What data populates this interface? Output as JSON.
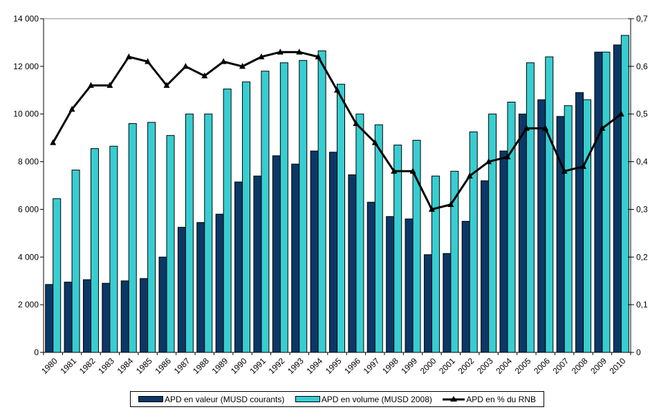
{
  "chart_data": {
    "type": "combo",
    "title": "",
    "categories": [
      "1980",
      "1981",
      "1982",
      "1983",
      "1984",
      "1985",
      "1986",
      "1987",
      "1988",
      "1989",
      "1990",
      "1991",
      "1992",
      "1993",
      "1994",
      "1995",
      "1996",
      "1997",
      "1998",
      "1999",
      "2000",
      "2001",
      "2002",
      "2003",
      "2004",
      "2005",
      "2006",
      "2007",
      "2008",
      "2009",
      "2010"
    ],
    "series": [
      {
        "name": "APD en valeur (MUSD courants)",
        "type": "bar",
        "axis": "left",
        "color": "#0B3866",
        "values": [
          2850,
          2950,
          3050,
          2900,
          3000,
          3100,
          4000,
          5250,
          5450,
          5800,
          7150,
          7400,
          8250,
          7900,
          8450,
          8400,
          7450,
          6300,
          5700,
          5600,
          4100,
          4150,
          5500,
          7200,
          8450,
          10000,
          10600,
          9900,
          10900,
          12600,
          12900
        ]
      },
      {
        "name": "APD en volume (MUSD 2008)",
        "type": "bar",
        "axis": "left",
        "color": "#38CDD1",
        "values": [
          6450,
          7650,
          8550,
          8650,
          9600,
          9650,
          9100,
          10000,
          10000,
          11050,
          11350,
          11800,
          12150,
          12250,
          12650,
          11250,
          10000,
          9550,
          8700,
          8900,
          7400,
          7600,
          9250,
          10000,
          10500,
          12150,
          12400,
          10350,
          10600,
          12600,
          13300
        ]
      },
      {
        "name": "APD en % du RNB",
        "type": "line",
        "axis": "right",
        "color": "#000000",
        "marker": "triangle",
        "values": [
          0.44,
          0.51,
          0.56,
          0.56,
          0.62,
          0.61,
          0.56,
          0.6,
          0.58,
          0.61,
          0.6,
          0.62,
          0.63,
          0.63,
          0.62,
          0.55,
          0.48,
          0.44,
          0.38,
          0.38,
          0.3,
          0.31,
          0.37,
          0.4,
          0.41,
          0.47,
          0.47,
          0.38,
          0.39,
          0.47,
          0.5
        ]
      }
    ],
    "left_axis": {
      "min": 0,
      "max": 14000,
      "step": 2000,
      "tick_labels": [
        "0",
        "2 000",
        "4 000",
        "6 000",
        "8 000",
        "10 000",
        "12 000",
        "14 000"
      ]
    },
    "right_axis": {
      "min": 0,
      "max": 0.7,
      "step": 0.1,
      "tick_labels": [
        "0",
        "0,1",
        "0,2",
        "0,3",
        "0,4",
        "0,5",
        "0,6",
        "0,7"
      ]
    },
    "grid": "top-border-only",
    "legend_position": "bottom",
    "colors": {
      "top_border": "#888888",
      "axis": "#000000"
    }
  }
}
